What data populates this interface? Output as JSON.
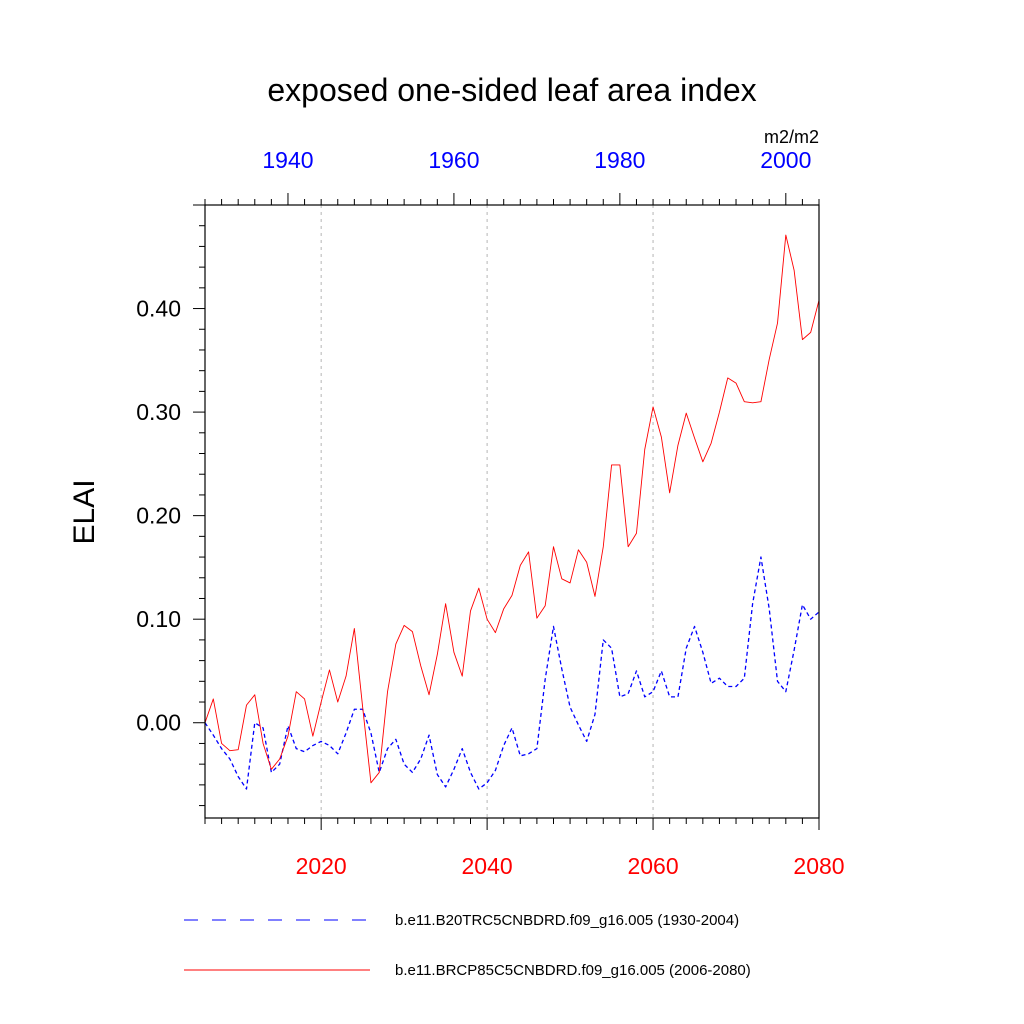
{
  "chart_data": {
    "type": "line",
    "title": "exposed one-sided leaf area index",
    "ylabel": "ELAI",
    "units": "m2/m2",
    "ylim": [
      -0.092,
      0.5
    ],
    "yticks": [
      0.0,
      0.1,
      0.2,
      0.3,
      0.4
    ],
    "ytick_labels": [
      "0.00",
      "0.10",
      "0.20",
      "0.30",
      "0.40"
    ],
    "grid": "vertical-dotted",
    "legend_position": "bottom",
    "colors": {
      "bottom_axis": "#ff0000",
      "top_axis": "#0000ff",
      "red_series": "#ff0000",
      "blue_series": "#0000ff",
      "grid": "#b4b4b4"
    },
    "bottom_axis": {
      "range": [
        2006,
        2080
      ],
      "ticks": [
        2020,
        2040,
        2060,
        2080
      ],
      "tick_labels": [
        "2020",
        "2040",
        "2060",
        "2080"
      ]
    },
    "top_axis": {
      "range": [
        1930,
        2004
      ],
      "ticks": [
        1940,
        1960,
        1980,
        2000
      ],
      "tick_labels": [
        "1940",
        "1960",
        "1980",
        "2000"
      ]
    },
    "series": [
      {
        "name": "b.e11.B20TRC5CNBDRD.f09_g16.005 (1930-2004)",
        "axis": "top",
        "style": "dashed",
        "x_start": 1930,
        "values": [
          0.0,
          -0.012,
          -0.025,
          -0.035,
          -0.052,
          -0.064,
          0.0,
          -0.005,
          -0.048,
          -0.04,
          -0.003,
          -0.025,
          -0.028,
          -0.022,
          -0.018,
          -0.022,
          -0.03,
          -0.01,
          0.013,
          0.013,
          -0.01,
          -0.048,
          -0.025,
          -0.016,
          -0.04,
          -0.048,
          -0.035,
          -0.012,
          -0.05,
          -0.062,
          -0.045,
          -0.025,
          -0.048,
          -0.064,
          -0.058,
          -0.046,
          -0.022,
          -0.005,
          -0.032,
          -0.03,
          -0.025,
          0.042,
          0.093,
          0.052,
          0.015,
          -0.002,
          -0.018,
          0.008,
          0.08,
          0.072,
          0.025,
          0.028,
          0.05,
          0.025,
          0.03,
          0.05,
          0.025,
          0.025,
          0.072,
          0.093,
          0.068,
          0.038,
          0.043,
          0.035,
          0.035,
          0.043,
          0.115,
          0.16,
          0.11,
          0.04,
          0.03,
          0.07,
          0.114,
          0.1,
          0.107
        ]
      },
      {
        "name": "b.e11.BRCP85C5CNBDRD.f09_g16.005 (2006-2080)",
        "axis": "bottom",
        "style": "solid",
        "x_start": 2006,
        "values": [
          0.0,
          0.023,
          -0.02,
          -0.027,
          -0.026,
          0.017,
          0.027,
          -0.02,
          -0.045,
          -0.035,
          -0.013,
          0.03,
          0.023,
          -0.013,
          0.02,
          0.051,
          0.02,
          0.045,
          0.091,
          0.015,
          -0.058,
          -0.048,
          0.03,
          0.076,
          0.094,
          0.088,
          0.055,
          0.027,
          0.066,
          0.115,
          0.068,
          0.045,
          0.108,
          0.13,
          0.1,
          0.087,
          0.11,
          0.123,
          0.152,
          0.165,
          0.101,
          0.113,
          0.17,
          0.139,
          0.135,
          0.167,
          0.155,
          0.122,
          0.17,
          0.249,
          0.249,
          0.17,
          0.183,
          0.264,
          0.305,
          0.276,
          0.222,
          0.268,
          0.299,
          0.275,
          0.252,
          0.27,
          0.3,
          0.333,
          0.328,
          0.31,
          0.309,
          0.31,
          0.351,
          0.386,
          0.471,
          0.437,
          0.37,
          0.377,
          0.408
        ]
      }
    ]
  }
}
